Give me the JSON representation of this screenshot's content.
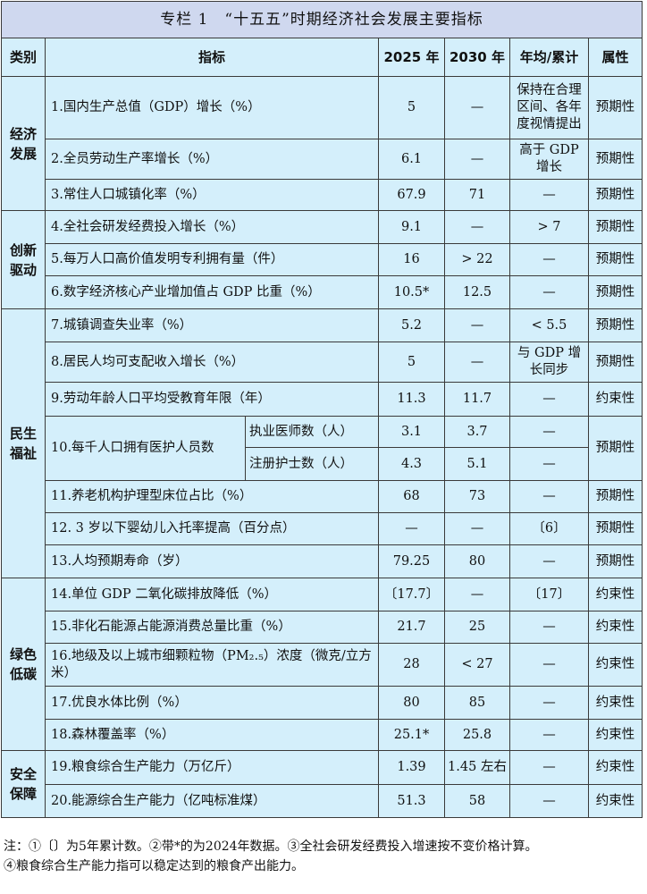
{
  "title": "专栏 1　“十五五”时期经济社会发展主要指标",
  "headers": {
    "category": "类别",
    "indicator": "指标",
    "y2025": "2025 年",
    "y2030": "2030 年",
    "avg": "年均/累计",
    "attr": "属性"
  },
  "categories": [
    {
      "name": "经济发展",
      "rows": [
        {
          "indicator": "1.国内生产总值（GDP）增长（%）",
          "v2025": "5",
          "v2030": "—",
          "avg": "保持在合理区间、各年度视情提出",
          "attr": "预期性"
        },
        {
          "indicator": "2.全员劳动生产率增长（%）",
          "v2025": "6.1",
          "v2030": "—",
          "avg": "高于 GDP 增长",
          "attr": "预期性"
        },
        {
          "indicator": "3.常住人口城镇化率（%）",
          "v2025": "67.9",
          "v2030": "71",
          "avg": "—",
          "attr": "预期性"
        }
      ]
    },
    {
      "name": "创新驱动",
      "rows": [
        {
          "indicator": "4.全社会研发经费投入增长（%）",
          "v2025": "9.1",
          "v2030": "—",
          "avg": "> 7",
          "attr": "预期性"
        },
        {
          "indicator": "5.每万人口高价值发明专利拥有量（件）",
          "v2025": "16",
          "v2030": "> 22",
          "avg": "—",
          "attr": "预期性"
        },
        {
          "indicator": "6.数字经济核心产业增加值占 GDP 比重（%）",
          "v2025": "10.5*",
          "v2030": "12.5",
          "avg": "—",
          "attr": "预期性"
        }
      ]
    },
    {
      "name": "民生福祉",
      "rows": [
        {
          "indicator": "7.城镇调查失业率（%）",
          "v2025": "5.2",
          "v2030": "—",
          "avg": "< 5.5",
          "attr": "预期性"
        },
        {
          "indicator": "8.居民人均可支配收入增长（%）",
          "v2025": "5",
          "v2030": "—",
          "avg": "与 GDP 增长同步",
          "attr": "预期性"
        },
        {
          "indicator": "9.劳动年龄人口平均受教育年限（年）",
          "v2025": "11.3",
          "v2030": "11.7",
          "avg": "—",
          "attr": "约束性"
        },
        {
          "indicator": "10.每千人口拥有医护人员数",
          "attr": "预期性",
          "sub": [
            {
              "label": "执业医师数（人）",
              "v2025": "3.1",
              "v2030": "3.7",
              "avg": "—"
            },
            {
              "label": "注册护士数（人）",
              "v2025": "4.3",
              "v2030": "5.1",
              "avg": "—"
            }
          ]
        },
        {
          "indicator": "11.养老机构护理型床位占比（%）",
          "v2025": "68",
          "v2030": "73",
          "avg": "—",
          "attr": "预期性"
        },
        {
          "indicator": "12. 3 岁以下婴幼儿入托率提高（百分点）",
          "v2025": "—",
          "v2030": "—",
          "avg": "〔6〕",
          "attr": "预期性"
        },
        {
          "indicator": "13.人均预期寿命（岁）",
          "v2025": "79.25",
          "v2030": "80",
          "avg": "—",
          "attr": "预期性"
        }
      ]
    },
    {
      "name": "绿色低碳",
      "rows": [
        {
          "indicator": "14.单位 GDP 二氧化碳排放降低（%）",
          "v2025": "〔17.7〕",
          "v2030": "—",
          "avg": "〔17〕",
          "attr": "约束性"
        },
        {
          "indicator": "15.非化石能源占能源消费总量比重（%）",
          "v2025": "21.7",
          "v2030": "25",
          "avg": "—",
          "attr": "约束性"
        },
        {
          "indicator": "16.地级及以上城市细颗粒物（PM₂.₅）浓度（微克/立方米）",
          "v2025": "28",
          "v2030": "< 27",
          "avg": "—",
          "attr": "约束性"
        },
        {
          "indicator": "17.优良水体比例（%）",
          "v2025": "80",
          "v2030": "85",
          "avg": "—",
          "attr": "约束性"
        },
        {
          "indicator": "18.森林覆盖率（%）",
          "v2025": "25.1*",
          "v2030": "25.8",
          "avg": "—",
          "attr": "约束性"
        }
      ]
    },
    {
      "name": "安全保障",
      "rows": [
        {
          "indicator": "19.粮食综合生产能力（万亿斤）",
          "v2025": "1.39",
          "v2030": "1.45 左右",
          "avg": "—",
          "attr": "约束性"
        },
        {
          "indicator": "20.能源综合生产能力（亿吨标准煤）",
          "v2025": "51.3",
          "v2030": "58",
          "avg": "—",
          "attr": "约束性"
        }
      ]
    }
  ],
  "notes": [
    "注：①〔〕为5年累计数。②带*的为2024年数据。③全社会研发经费投入增速按不变价格计算。",
    "④粮食综合生产能力指可以稳定达到的粮食产出能力。"
  ]
}
